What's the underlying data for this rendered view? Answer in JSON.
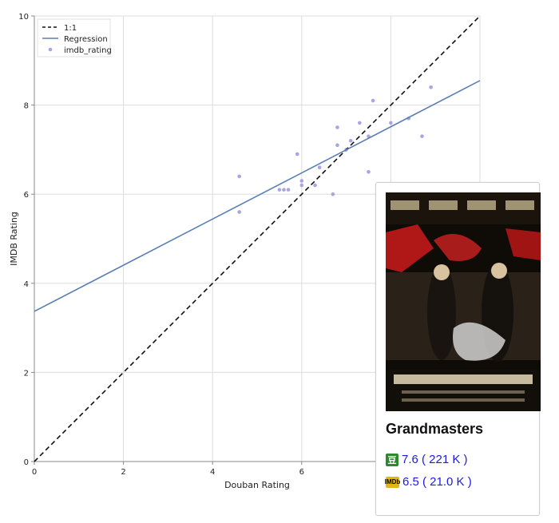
{
  "chart_data": {
    "type": "scatter",
    "xlabel": "Douban Rating",
    "ylabel": "IMDB Rating",
    "xlim": [
      0,
      10
    ],
    "ylim": [
      0,
      10
    ],
    "x_ticks": [
      "0",
      "2",
      "4",
      "6"
    ],
    "y_ticks": [
      "0",
      "2",
      "4",
      "6",
      "8",
      "10"
    ],
    "grid": true,
    "legend": {
      "placement": "top-left",
      "entries": [
        "1:1",
        "Regression",
        "imdb_rating"
      ]
    },
    "points": [
      {
        "x": 4.6,
        "y": 6.4
      },
      {
        "x": 4.6,
        "y": 5.6
      },
      {
        "x": 5.5,
        "y": 6.1
      },
      {
        "x": 5.6,
        "y": 6.1
      },
      {
        "x": 5.7,
        "y": 6.1
      },
      {
        "x": 5.9,
        "y": 6.9
      },
      {
        "x": 6.0,
        "y": 6.3
      },
      {
        "x": 6.0,
        "y": 6.2
      },
      {
        "x": 6.3,
        "y": 6.2
      },
      {
        "x": 6.4,
        "y": 6.6
      },
      {
        "x": 6.7,
        "y": 6.0
      },
      {
        "x": 6.8,
        "y": 7.5
      },
      {
        "x": 6.8,
        "y": 7.1
      },
      {
        "x": 7.0,
        "y": 7.0
      },
      {
        "x": 7.1,
        "y": 7.2
      },
      {
        "x": 7.3,
        "y": 7.6
      },
      {
        "x": 7.5,
        "y": 7.3
      },
      {
        "x": 7.5,
        "y": 6.5
      },
      {
        "x": 7.6,
        "y": 8.1
      },
      {
        "x": 8.0,
        "y": 7.6
      },
      {
        "x": 8.4,
        "y": 7.7
      },
      {
        "x": 8.7,
        "y": 7.3
      },
      {
        "x": 8.9,
        "y": 8.4
      }
    ],
    "regression": {
      "intercept": 3.37,
      "slope": 0.518
    },
    "identity_line": {
      "from": [
        0,
        0
      ],
      "to": [
        10,
        10
      ]
    },
    "colors": {
      "points": "#a8a4e6",
      "regression": "#5a7fb5",
      "identity": "#111111",
      "grid": "#dddddd"
    }
  },
  "tooltip": {
    "title": "Grandmasters",
    "douban_icon": "豆",
    "douban_text": "7.6 ( 221 K )",
    "imdb_icon": "IMDb",
    "imdb_text": "6.5 ( 21.0 K )",
    "poster_icon": "movie-poster-icon"
  }
}
